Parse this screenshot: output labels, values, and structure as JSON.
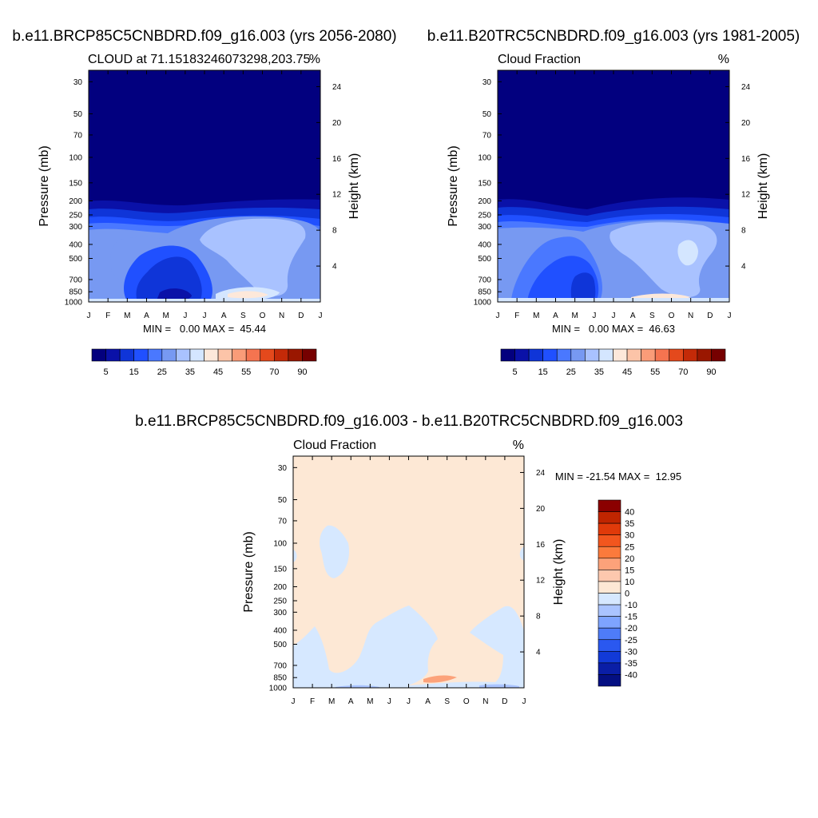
{
  "chart_data": [
    {
      "type": "contour",
      "case_title": "b.e11.BRCP85C5CNBDRD.f09_g16.003 (yrs 2056-2080)",
      "title": "CLOUD at 71.15183246073298,203.75",
      "units": "%",
      "ylabel": "Pressure (mb)",
      "ylabel_right": "Height (km)",
      "months": [
        "J",
        "F",
        "M",
        "A",
        "M",
        "J",
        "J",
        "A",
        "S",
        "O",
        "N",
        "D",
        "J"
      ],
      "pressure_levels": [
        30,
        50,
        70,
        100,
        150,
        200,
        250,
        300,
        400,
        500,
        700,
        850,
        1000
      ],
      "height_km": [
        24,
        20,
        16,
        12,
        8,
        4
      ],
      "stats": "MIN =   0.00 MAX =  45.44",
      "colorbar_labels": [
        "5",
        "15",
        "25",
        "35",
        "45",
        "55",
        "70",
        "90"
      ],
      "colorbar_colors": [
        "#03007e",
        "#0a11a8",
        "#0f35d8",
        "#2050ff",
        "#4a78ff",
        "#7799f2",
        "#a9c2ff",
        "#d4e6ff",
        "#fde8da",
        "#fcc4a8",
        "#fa9c78",
        "#f57450",
        "#e4491c",
        "#c42a08",
        "#9a1700",
        "#760000"
      ]
    },
    {
      "type": "contour",
      "case_title": "b.e11.B20TRC5CNBDRD.f09_g16.003 (yrs 1981-2005)",
      "title": "Cloud Fraction",
      "units": "%",
      "ylabel": "Pressure (mb)",
      "ylabel_right": "Height (km)",
      "months": [
        "J",
        "F",
        "M",
        "A",
        "M",
        "J",
        "J",
        "A",
        "S",
        "O",
        "N",
        "D",
        "J"
      ],
      "pressure_levels": [
        30,
        50,
        70,
        100,
        150,
        200,
        250,
        300,
        400,
        500,
        700,
        850,
        1000
      ],
      "height_km": [
        24,
        20,
        16,
        12,
        8,
        4
      ],
      "stats": "MIN =   0.00 MAX =  46.63",
      "colorbar_labels": [
        "5",
        "15",
        "25",
        "35",
        "45",
        "55",
        "70",
        "90"
      ],
      "colorbar_colors": [
        "#03007e",
        "#0a11a8",
        "#0f35d8",
        "#2050ff",
        "#4a78ff",
        "#7799f2",
        "#a9c2ff",
        "#d4e6ff",
        "#fde8da",
        "#fcc4a8",
        "#fa9c78",
        "#f57450",
        "#e4491c",
        "#c42a08",
        "#9a1700",
        "#760000"
      ]
    },
    {
      "type": "contour",
      "case_title": "b.e11.BRCP85C5CNBDRD.f09_g16.003 - b.e11.B20TRC5CNBDRD.f09_g16.003",
      "title": "Cloud Fraction",
      "units": "%",
      "ylabel": "Pressure (mb)",
      "ylabel_right": "Height (km)",
      "months": [
        "J",
        "F",
        "M",
        "A",
        "M",
        "J",
        "J",
        "A",
        "S",
        "O",
        "N",
        "D",
        "J"
      ],
      "pressure_levels": [
        30,
        50,
        70,
        100,
        150,
        200,
        250,
        300,
        400,
        500,
        700,
        850,
        1000
      ],
      "height_km": [
        24,
        20,
        16,
        12,
        8,
        4
      ],
      "stats": "MIN = -21.54 MAX =  12.95",
      "colorbar_labels": [
        "40",
        "35",
        "30",
        "25",
        "20",
        "15",
        "10",
        "0",
        "-10",
        "-15",
        "-20",
        "-25",
        "-30",
        "-35",
        "-40"
      ],
      "colorbar_colors": [
        "#8b0000",
        "#c02500",
        "#e03a0a",
        "#f2561e",
        "#fb7a3c",
        "#fca27a",
        "#fdc8ae",
        "#fde8d5",
        "#d6e8ff",
        "#aac4ff",
        "#7ea4ff",
        "#4e7cf8",
        "#2a58f0",
        "#123ad8",
        "#0a1ea6",
        "#040f82"
      ]
    }
  ]
}
